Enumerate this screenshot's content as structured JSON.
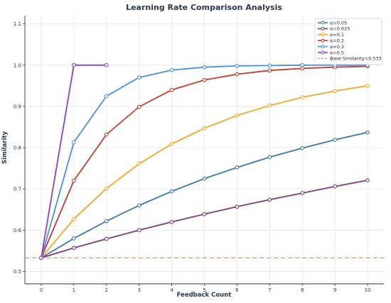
{
  "chart_data": {
    "type": "line",
    "title": "Learning Rate Comparison Analysis",
    "xlabel": "Feedback Count",
    "ylabel": "Similarity",
    "xlim": [
      -0.5,
      10.5
    ],
    "ylim": [
      0.47,
      1.12
    ],
    "xticks": [
      0,
      1,
      2,
      3,
      4,
      5,
      6,
      7,
      8,
      9,
      10
    ],
    "yticks": [
      0.5,
      0.6,
      0.7,
      0.8,
      0.9,
      1.0,
      1.1
    ],
    "ytick_labels": [
      "0.5",
      "0.6",
      "0.7",
      "0.8",
      "0.9",
      "1.0",
      "1.1"
    ],
    "grid": true,
    "legend_position": "top-right",
    "series": [
      {
        "name": "α=0.05",
        "color": "#3a78a8",
        "x": [
          0,
          1,
          2,
          3,
          4,
          5,
          6,
          7,
          8,
          9,
          10
        ],
        "y": [
          0.533,
          0.58,
          0.622,
          0.66,
          0.694,
          0.725,
          0.752,
          0.777,
          0.799,
          0.819,
          0.837
        ]
      },
      {
        "name": "α=0.025",
        "color": "#7b3f72",
        "x": [
          0,
          1,
          2,
          3,
          4,
          5,
          6,
          7,
          8,
          9,
          10
        ],
        "y": [
          0.533,
          0.557,
          0.579,
          0.6,
          0.62,
          0.639,
          0.657,
          0.674,
          0.69,
          0.706,
          0.721
        ]
      },
      {
        "name": "α=0.1",
        "color": "#f5a623",
        "x": [
          0,
          1,
          2,
          3,
          4,
          5,
          6,
          7,
          8,
          9,
          10
        ],
        "y": [
          0.533,
          0.627,
          0.701,
          0.761,
          0.809,
          0.847,
          0.878,
          0.902,
          0.922,
          0.937,
          0.95
        ]
      },
      {
        "name": "α=0.2",
        "color": "#c63b2b",
        "x": [
          0,
          1,
          2,
          3,
          4,
          5,
          6,
          7,
          8,
          9,
          10
        ],
        "y": [
          0.533,
          0.72,
          0.832,
          0.899,
          0.94,
          0.964,
          0.978,
          0.987,
          0.992,
          0.995,
          0.997
        ]
      },
      {
        "name": "α=0.3",
        "color": "#4a90e2",
        "x": [
          0,
          1,
          2,
          3,
          4,
          5,
          6,
          7,
          8,
          9,
          10
        ],
        "y": [
          0.533,
          0.813,
          0.925,
          0.97,
          0.988,
          0.995,
          0.998,
          0.999,
          1.0,
          1.0,
          1.0
        ]
      },
      {
        "name": "α=0.5",
        "color": "#8a3fd6",
        "x": [
          0,
          1,
          2
        ],
        "y": [
          0.533,
          1.0,
          1.0
        ]
      }
    ],
    "baseline": {
      "name": "Base Similarity=0.533",
      "value": 0.533,
      "color": "#d99a7a"
    }
  }
}
